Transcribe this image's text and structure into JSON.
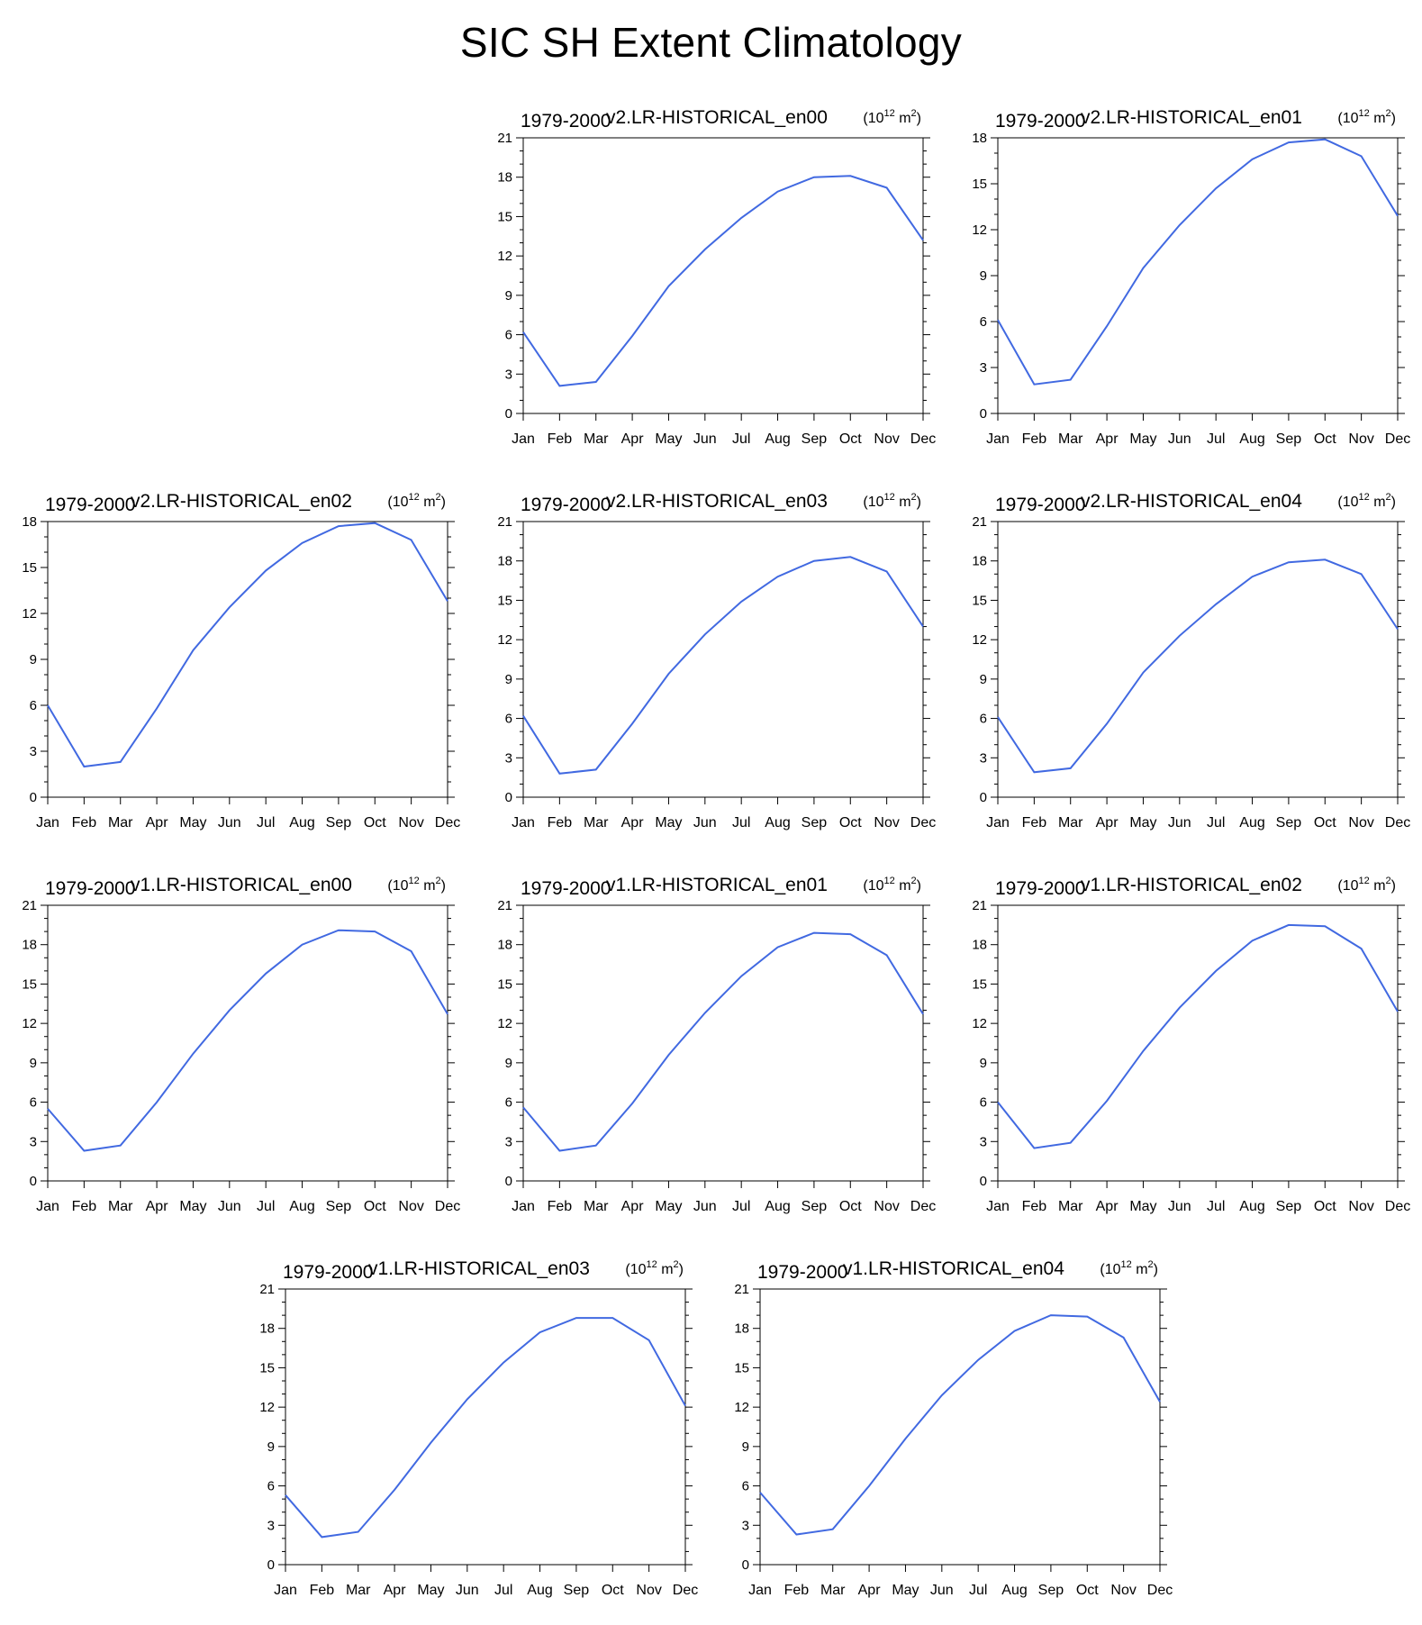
{
  "figure_title": "SIC SH Extent Climatology",
  "line_color": "#4169e1",
  "chart_data": [
    {
      "type": "line",
      "period": "1979-2000",
      "title": "v2.LR-HISTORICAL_en00",
      "units": "(10",
      "units_exp": "12",
      "units_tail": " m",
      "units_exp2": "2",
      "units_close": ")",
      "categories": [
        "Jan",
        "Feb",
        "Mar",
        "Apr",
        "May",
        "Jun",
        "Jul",
        "Aug",
        "Sep",
        "Oct",
        "Nov",
        "Dec"
      ],
      "values": [
        6.2,
        2.1,
        2.4,
        5.9,
        9.7,
        12.5,
        14.9,
        16.9,
        18.0,
        18.1,
        17.2,
        13.2
      ],
      "ylim": [
        0,
        21
      ],
      "yticks": [
        0,
        3,
        6,
        9,
        12,
        15,
        18,
        21
      ]
    },
    {
      "type": "line",
      "period": "1979-2000",
      "title": "v2.LR-HISTORICAL_en01",
      "units": "(10",
      "units_exp": "12",
      "units_tail": " m",
      "units_exp2": "2",
      "units_close": ")",
      "categories": [
        "Jan",
        "Feb",
        "Mar",
        "Apr",
        "May",
        "Jun",
        "Jul",
        "Aug",
        "Sep",
        "Oct",
        "Nov",
        "Dec"
      ],
      "values": [
        6.1,
        1.9,
        2.2,
        5.7,
        9.5,
        12.3,
        14.7,
        16.6,
        17.7,
        17.9,
        16.8,
        12.9
      ],
      "ylim": [
        0,
        18
      ],
      "yticks": [
        0,
        3,
        6,
        9,
        12,
        15,
        18
      ]
    },
    {
      "type": "line",
      "period": "1979-2000",
      "title": "v2.LR-HISTORICAL_en02",
      "units": "(10",
      "units_exp": "12",
      "units_tail": " m",
      "units_exp2": "2",
      "units_close": ")",
      "categories": [
        "Jan",
        "Feb",
        "Mar",
        "Apr",
        "May",
        "Jun",
        "Jul",
        "Aug",
        "Sep",
        "Oct",
        "Nov",
        "Dec"
      ],
      "values": [
        6.0,
        2.0,
        2.3,
        5.8,
        9.6,
        12.4,
        14.8,
        16.6,
        17.7,
        17.9,
        16.8,
        12.8
      ],
      "ylim": [
        0,
        18
      ],
      "yticks": [
        0,
        3,
        6,
        9,
        12,
        15,
        18
      ]
    },
    {
      "type": "line",
      "period": "1979-2000",
      "title": "v2.LR-HISTORICAL_en03",
      "units": "(10",
      "units_exp": "12",
      "units_tail": " m",
      "units_exp2": "2",
      "units_close": ")",
      "categories": [
        "Jan",
        "Feb",
        "Mar",
        "Apr",
        "May",
        "Jun",
        "Jul",
        "Aug",
        "Sep",
        "Oct",
        "Nov",
        "Dec"
      ],
      "values": [
        6.2,
        1.8,
        2.1,
        5.6,
        9.4,
        12.4,
        14.9,
        16.8,
        18.0,
        18.3,
        17.2,
        13.0
      ],
      "ylim": [
        0,
        21
      ],
      "yticks": [
        0,
        3,
        6,
        9,
        12,
        15,
        18,
        21
      ]
    },
    {
      "type": "line",
      "period": "1979-2000",
      "title": "v2.LR-HISTORICAL_en04",
      "units": "(10",
      "units_exp": "12",
      "units_tail": " m",
      "units_exp2": "2",
      "units_close": ")",
      "categories": [
        "Jan",
        "Feb",
        "Mar",
        "Apr",
        "May",
        "Jun",
        "Jul",
        "Aug",
        "Sep",
        "Oct",
        "Nov",
        "Dec"
      ],
      "values": [
        6.1,
        1.9,
        2.2,
        5.6,
        9.5,
        12.3,
        14.7,
        16.8,
        17.9,
        18.1,
        17.0,
        12.8
      ],
      "ylim": [
        0,
        21
      ],
      "yticks": [
        0,
        3,
        6,
        9,
        12,
        15,
        18,
        21
      ]
    },
    {
      "type": "line",
      "period": "1979-2000",
      "title": "v1.LR-HISTORICAL_en00",
      "units": "(10",
      "units_exp": "12",
      "units_tail": " m",
      "units_exp2": "2",
      "units_close": ")",
      "categories": [
        "Jan",
        "Feb",
        "Mar",
        "Apr",
        "May",
        "Jun",
        "Jul",
        "Aug",
        "Sep",
        "Oct",
        "Nov",
        "Dec"
      ],
      "values": [
        5.5,
        2.3,
        2.7,
        6.0,
        9.7,
        13.0,
        15.8,
        18.0,
        19.1,
        19.0,
        17.5,
        12.7
      ],
      "ylim": [
        0,
        21
      ],
      "yticks": [
        0,
        3,
        6,
        9,
        12,
        15,
        18,
        21
      ]
    },
    {
      "type": "line",
      "period": "1979-2000",
      "title": "v1.LR-HISTORICAL_en01",
      "units": "(10",
      "units_exp": "12",
      "units_tail": " m",
      "units_exp2": "2",
      "units_close": ")",
      "categories": [
        "Jan",
        "Feb",
        "Mar",
        "Apr",
        "May",
        "Jun",
        "Jul",
        "Aug",
        "Sep",
        "Oct",
        "Nov",
        "Dec"
      ],
      "values": [
        5.6,
        2.3,
        2.7,
        5.9,
        9.6,
        12.8,
        15.6,
        17.8,
        18.9,
        18.8,
        17.2,
        12.7
      ],
      "ylim": [
        0,
        21
      ],
      "yticks": [
        0,
        3,
        6,
        9,
        12,
        15,
        18,
        21
      ]
    },
    {
      "type": "line",
      "period": "1979-2000",
      "title": "v1.LR-HISTORICAL_en02",
      "units": "(10",
      "units_exp": "12",
      "units_tail": " m",
      "units_exp2": "2",
      "units_close": ")",
      "categories": [
        "Jan",
        "Feb",
        "Mar",
        "Apr",
        "May",
        "Jun",
        "Jul",
        "Aug",
        "Sep",
        "Oct",
        "Nov",
        "Dec"
      ],
      "values": [
        6.0,
        2.5,
        2.9,
        6.1,
        9.9,
        13.2,
        16.0,
        18.3,
        19.5,
        19.4,
        17.7,
        12.9
      ],
      "ylim": [
        0,
        21
      ],
      "yticks": [
        0,
        3,
        6,
        9,
        12,
        15,
        18,
        21
      ]
    },
    {
      "type": "line",
      "period": "1979-2000",
      "title": "v1.LR-HISTORICAL_en03",
      "units": "(10",
      "units_exp": "12",
      "units_tail": " m",
      "units_exp2": "2",
      "units_close": ")",
      "categories": [
        "Jan",
        "Feb",
        "Mar",
        "Apr",
        "May",
        "Jun",
        "Jul",
        "Aug",
        "Sep",
        "Oct",
        "Nov",
        "Dec"
      ],
      "values": [
        5.3,
        2.1,
        2.5,
        5.7,
        9.3,
        12.6,
        15.4,
        17.7,
        18.8,
        18.8,
        17.1,
        12.1
      ],
      "ylim": [
        0,
        21
      ],
      "yticks": [
        0,
        3,
        6,
        9,
        12,
        15,
        18,
        21
      ]
    },
    {
      "type": "line",
      "period": "1979-2000",
      "title": "v1.LR-HISTORICAL_en04",
      "units": "(10",
      "units_exp": "12",
      "units_tail": " m",
      "units_exp2": "2",
      "units_close": ")",
      "categories": [
        "Jan",
        "Feb",
        "Mar",
        "Apr",
        "May",
        "Jun",
        "Jul",
        "Aug",
        "Sep",
        "Oct",
        "Nov",
        "Dec"
      ],
      "values": [
        5.5,
        2.3,
        2.7,
        6.0,
        9.6,
        12.9,
        15.6,
        17.8,
        19.0,
        18.9,
        17.3,
        12.4
      ],
      "ylim": [
        0,
        21
      ],
      "yticks": [
        0,
        3,
        6,
        9,
        12,
        15,
        18,
        21
      ]
    }
  ]
}
